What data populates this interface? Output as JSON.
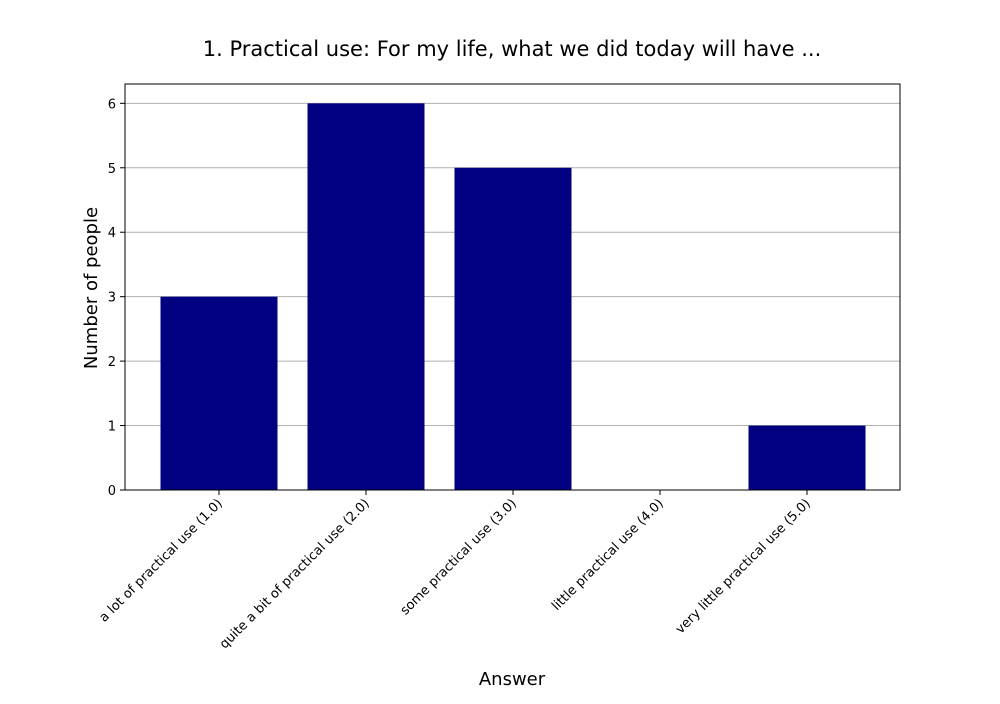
{
  "chart_data": {
    "type": "bar",
    "title": "1. Practical use: For my life, what we did today will have ...",
    "xlabel": "Answer",
    "ylabel": "Number of people",
    "categories": [
      "a lot of practical use (1.0)",
      "quite a bit of practical use (2.0)",
      "some practical use (3.0)",
      "little practical use (4.0)",
      "very little practical use (5.0)"
    ],
    "values": [
      3,
      6,
      5,
      0,
      1
    ],
    "ylim": [
      0,
      6.3
    ],
    "yticks": [
      0,
      1,
      2,
      3,
      4,
      5,
      6
    ],
    "grid": "y",
    "bar_color": "#000080"
  }
}
